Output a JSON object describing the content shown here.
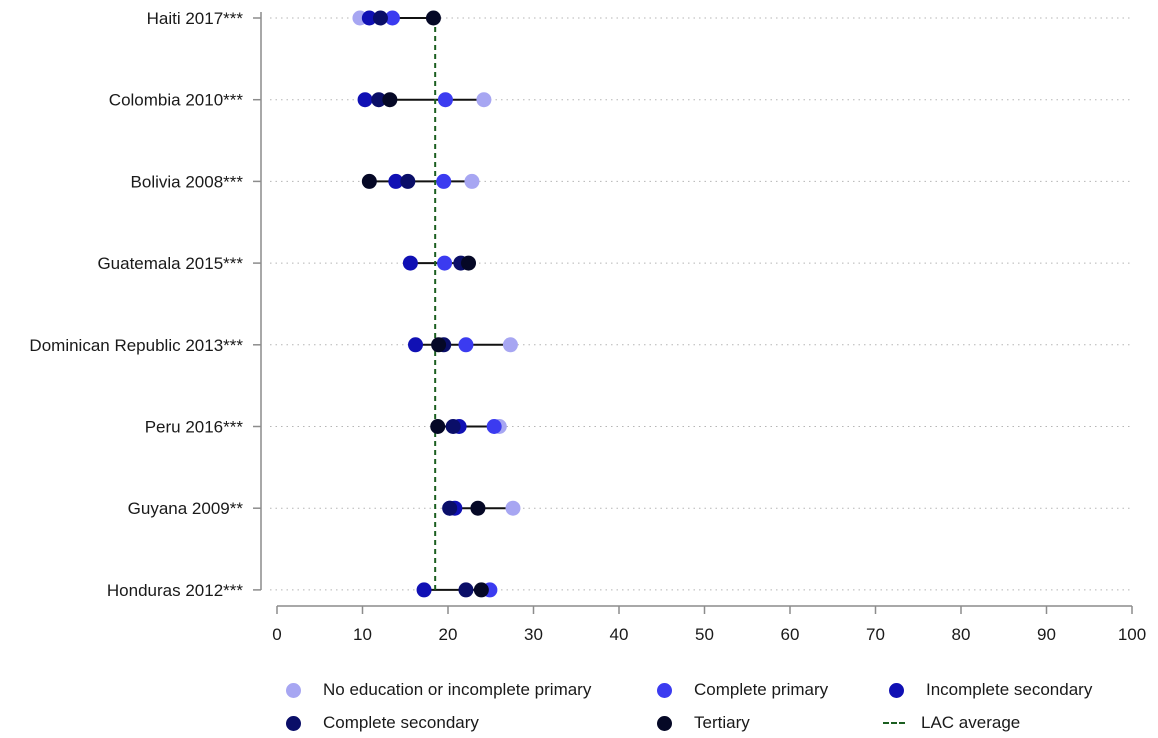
{
  "chart_data": {
    "type": "scatter",
    "subtype": "dot-range",
    "xlim": [
      0,
      100
    ],
    "x_ticks": [
      0,
      10,
      20,
      30,
      40,
      50,
      60,
      70,
      80,
      90,
      100
    ],
    "grid": "dotted horizontal lines",
    "legend_position": "bottom",
    "categories": [
      "Haiti 2017***",
      "Colombia 2010***",
      "Bolivia 2008***",
      "Guatemala 2015***",
      "Dominican Republic 2013***",
      "Peru 2016***",
      "Guyana 2009**",
      "Honduras 2012***"
    ],
    "series": [
      {
        "name": "No education or incomplete primary",
        "color": "#a7a6f2",
        "values": [
          9.7,
          24.2,
          22.8,
          null,
          27.3,
          26.0,
          27.6,
          null
        ]
      },
      {
        "name": "Complete primary",
        "color": "#3b3bf0",
        "values": [
          13.5,
          19.7,
          19.5,
          19.6,
          22.1,
          25.4,
          20.2,
          24.9
        ]
      },
      {
        "name": "Incomplete secondary",
        "color": "#1010b4",
        "values": [
          10.8,
          10.3,
          13.9,
          15.6,
          16.2,
          21.3,
          20.8,
          17.2
        ]
      },
      {
        "name": "Complete secondary",
        "color": "#0a0e68",
        "values": [
          12.1,
          11.9,
          15.3,
          21.5,
          19.5,
          20.6,
          20.2,
          22.1
        ]
      },
      {
        "name": "Tertiary",
        "color": "#050826",
        "values": [
          18.3,
          13.2,
          10.8,
          22.4,
          18.9,
          18.8,
          23.5,
          23.9
        ]
      }
    ],
    "reference_line": {
      "name": "LAC average",
      "value": 18.5,
      "color": "#1b5e20",
      "style": "dashed"
    }
  }
}
